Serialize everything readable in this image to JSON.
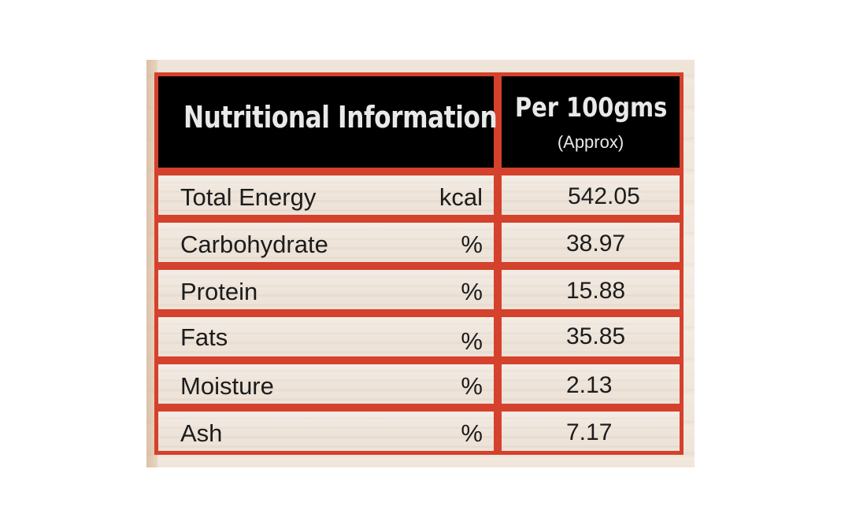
{
  "header": {
    "title": "Nutritional Information",
    "per": "Per 100gms",
    "approx": "(Approx)"
  },
  "rows": [
    {
      "label": "Total Energy",
      "unit": "kcal",
      "value": "542.05"
    },
    {
      "label": "Carbohydrate",
      "unit": "%",
      "value": "38.97"
    },
    {
      "label": "Protein",
      "unit": "%",
      "value": "15.88"
    },
    {
      "label": "Fats",
      "unit": "%",
      "value": "35.85"
    },
    {
      "label": "Moisture",
      "unit": "%",
      "value": "2.13"
    },
    {
      "label": "Ash",
      "unit": "%",
      "value": "7.17"
    }
  ],
  "colors": {
    "border": "#d4412c",
    "header_bg": "#000000",
    "header_text": "#e9e9e9",
    "body_text": "#1c1c1c"
  }
}
